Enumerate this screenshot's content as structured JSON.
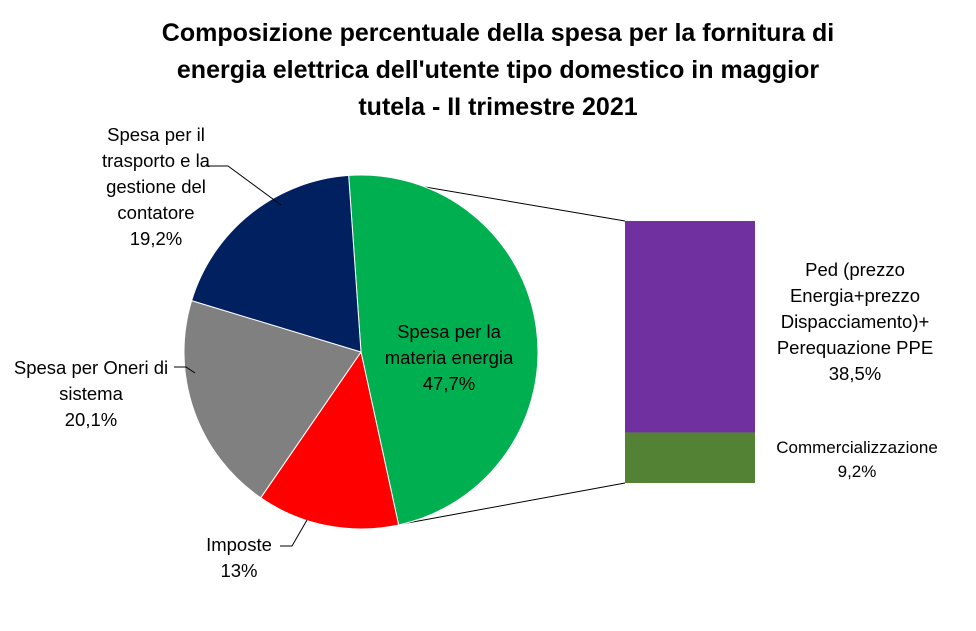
{
  "chart_data": {
    "type": "pie",
    "title": [
      "Composizione percentuale della spesa per la fornitura di",
      "energia elettrica dell'utente tipo domestico in maggior",
      "tutela - II trimestre 2021"
    ],
    "slices": [
      {
        "label_lines": [
          "Spesa per la",
          "materia energia"
        ],
        "value_label": "47,7%",
        "value": 47.7,
        "color": "#00B050"
      },
      {
        "label_lines": [
          "Imposte"
        ],
        "value_label": "13%",
        "value": 13.0,
        "color": "#FF0000"
      },
      {
        "label_lines": [
          "Spesa per Oneri di",
          "sistema"
        ],
        "value_label": "20,1%",
        "value": 20.1,
        "color": "#808080"
      },
      {
        "label_lines": [
          "Spesa per il",
          "trasporto e la",
          "gestione del",
          "contatore"
        ],
        "value_label": "19,2%",
        "value": 19.2,
        "color": "#002060"
      }
    ],
    "breakdown": {
      "parent": "Spesa per la materia energia",
      "segments": [
        {
          "label_lines": [
            "Ped (prezzo",
            "Energia+prezzo",
            "Dispacciamento)+",
            "Perequazione PPE"
          ],
          "value_label": "38,5%",
          "value": 38.5,
          "color": "#7030A0"
        },
        {
          "label_lines": [
            "Commercializzazione"
          ],
          "value_label": "9,2%",
          "value": 9.2,
          "color": "#548235"
        }
      ]
    }
  }
}
